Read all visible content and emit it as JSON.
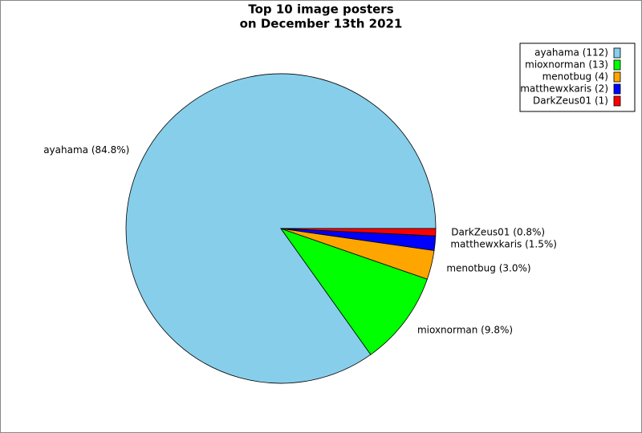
{
  "chart_data": {
    "type": "pie",
    "title": [
      "Top 10 image posters",
      "on December 13th 2021"
    ],
    "categories": [
      "ayahama (112)",
      "mioxnorman (13)",
      "menotbug (4)",
      "matthewxkaris (2)",
      "DarkZeus01 (1)"
    ],
    "values": [
      112,
      13,
      4,
      2,
      1
    ],
    "labels": [
      "ayahama (84.8%)",
      "mioxnorman (9.8%)",
      "menotbug (3.0%)",
      "matthewxkaris (1.5%)",
      "DarkZeus01 (0.8%)"
    ],
    "colors": [
      "#87ceeb",
      "#00ff00",
      "#ffa500",
      "#0000ff",
      "#ff0000"
    ],
    "legend": "upper right"
  }
}
